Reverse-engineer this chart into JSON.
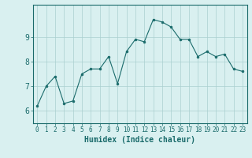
{
  "x": [
    0,
    1,
    2,
    3,
    4,
    5,
    6,
    7,
    8,
    9,
    10,
    11,
    12,
    13,
    14,
    15,
    16,
    17,
    18,
    19,
    20,
    21,
    22,
    23
  ],
  "y": [
    6.2,
    7.0,
    7.4,
    6.3,
    6.4,
    7.5,
    7.7,
    7.7,
    8.2,
    7.1,
    8.4,
    8.9,
    8.8,
    9.7,
    9.6,
    9.4,
    8.9,
    8.9,
    8.2,
    8.4,
    8.2,
    8.3,
    7.7,
    7.6
  ],
  "xlabel": "Humidex (Indice chaleur)",
  "ylim": [
    5.5,
    10.3
  ],
  "xlim": [
    -0.5,
    23.5
  ],
  "yticks": [
    6,
    7,
    8,
    9
  ],
  "xticks": [
    0,
    1,
    2,
    3,
    4,
    5,
    6,
    7,
    8,
    9,
    10,
    11,
    12,
    13,
    14,
    15,
    16,
    17,
    18,
    19,
    20,
    21,
    22,
    23
  ],
  "line_color": "#1a6b6b",
  "marker_color": "#1a6b6b",
  "bg_color": "#d9f0f0",
  "grid_color": "#aacfcf",
  "axis_color": "#1a6b6b",
  "tick_label_color": "#1a6b6b",
  "xlabel_color": "#1a6b6b",
  "tick_fontsize": 5.5,
  "ytick_fontsize": 7.0,
  "xlabel_fontsize": 7.0
}
